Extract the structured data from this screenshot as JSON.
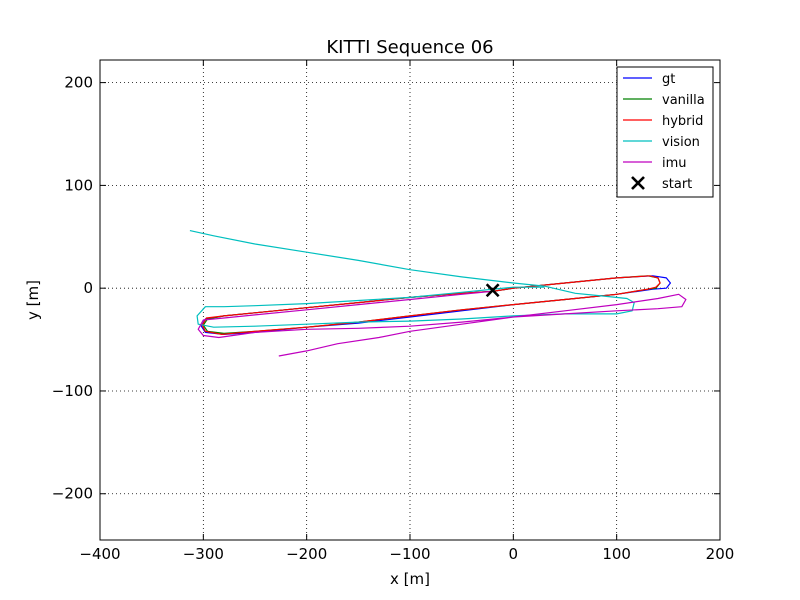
{
  "chart_data": {
    "type": "line",
    "title": "KITTI Sequence 06",
    "xlabel": "x [m]",
    "ylabel": "y [m]",
    "xlim": [
      -400,
      200
    ],
    "ylim": [
      -245,
      222
    ],
    "xticks": [
      -400,
      -300,
      -200,
      -100,
      0,
      100,
      200
    ],
    "yticks": [
      -200,
      -100,
      0,
      100,
      200
    ],
    "xtick_labels": [
      "−400",
      "−300",
      "−200",
      "−100",
      "0",
      "100",
      "200"
    ],
    "ytick_labels": [
      "−200",
      "−100",
      "0",
      "100",
      "200"
    ],
    "grid": true,
    "legend_position": "top-right",
    "series": [
      {
        "name": "gt",
        "color": "#0000ff",
        "points": [
          [
            -20,
            -3
          ],
          [
            0,
            0
          ],
          [
            50,
            5
          ],
          [
            100,
            10
          ],
          [
            135,
            12
          ],
          [
            148,
            10
          ],
          [
            152,
            5
          ],
          [
            148,
            0
          ],
          [
            135,
            -1
          ],
          [
            100,
            -6
          ],
          [
            50,
            -11
          ],
          [
            0,
            -16
          ],
          [
            -50,
            -22
          ],
          [
            -100,
            -28
          ],
          [
            -150,
            -34
          ],
          [
            -200,
            -38
          ],
          [
            -250,
            -43
          ],
          [
            -280,
            -45
          ],
          [
            -298,
            -43
          ],
          [
            -302,
            -37
          ],
          [
            -298,
            -30
          ],
          [
            -280,
            -27
          ],
          [
            -250,
            -24
          ],
          [
            -200,
            -19
          ],
          [
            -150,
            -14
          ],
          [
            -100,
            -9
          ],
          [
            -50,
            -5
          ],
          [
            -20,
            -3
          ]
        ]
      },
      {
        "name": "vanilla",
        "color": "#008000",
        "points": [
          [
            -20,
            -3
          ],
          [
            0,
            0
          ],
          [
            50,
            5
          ],
          [
            100,
            10
          ],
          [
            130,
            12
          ],
          [
            140,
            10
          ],
          [
            142,
            5
          ],
          [
            138,
            0
          ],
          [
            130,
            -1
          ],
          [
            100,
            -6
          ],
          [
            50,
            -11
          ],
          [
            0,
            -16
          ],
          [
            -50,
            -21
          ],
          [
            -100,
            -27
          ],
          [
            -150,
            -33
          ],
          [
            -200,
            -38
          ],
          [
            -250,
            -42
          ],
          [
            -280,
            -44
          ],
          [
            -296,
            -42
          ],
          [
            -300,
            -36
          ],
          [
            -296,
            -30
          ],
          [
            -280,
            -27
          ],
          [
            -250,
            -24
          ],
          [
            -200,
            -19
          ],
          [
            -150,
            -14
          ],
          [
            -100,
            -9
          ],
          [
            -50,
            -5
          ],
          [
            -20,
            -3
          ]
        ]
      },
      {
        "name": "hybrid",
        "color": "#ff0000",
        "points": [
          [
            -20,
            -3
          ],
          [
            0,
            0
          ],
          [
            50,
            5
          ],
          [
            100,
            10
          ],
          [
            132,
            12
          ],
          [
            140,
            10
          ],
          [
            142,
            5
          ],
          [
            138,
            1
          ],
          [
            130,
            -1
          ],
          [
            100,
            -6
          ],
          [
            50,
            -11
          ],
          [
            0,
            -16
          ],
          [
            -50,
            -21
          ],
          [
            -100,
            -27
          ],
          [
            -150,
            -33
          ],
          [
            -200,
            -38
          ],
          [
            -250,
            -42
          ],
          [
            -282,
            -45
          ],
          [
            -298,
            -42
          ],
          [
            -301,
            -36
          ],
          [
            -297,
            -29
          ],
          [
            -280,
            -27
          ],
          [
            -250,
            -24
          ],
          [
            -200,
            -19
          ],
          [
            -150,
            -14
          ],
          [
            -100,
            -9
          ],
          [
            -50,
            -5
          ],
          [
            -20,
            -3
          ]
        ]
      },
      {
        "name": "vision",
        "color": "#00bfbf",
        "points": [
          [
            -313,
            56
          ],
          [
            -290,
            51
          ],
          [
            -250,
            43
          ],
          [
            -200,
            35
          ],
          [
            -150,
            27
          ],
          [
            -100,
            18
          ],
          [
            -50,
            11
          ],
          [
            0,
            5
          ],
          [
            30,
            2
          ],
          [
            60,
            -5
          ],
          [
            90,
            -8
          ],
          [
            110,
            -10
          ],
          [
            117,
            -14
          ],
          [
            115,
            -22
          ],
          [
            100,
            -25
          ],
          [
            50,
            -25
          ],
          [
            0,
            -27
          ],
          [
            -50,
            -30
          ],
          [
            -100,
            -32
          ],
          [
            -150,
            -33
          ],
          [
            -200,
            -35
          ],
          [
            -250,
            -37
          ],
          [
            -290,
            -38
          ],
          [
            -305,
            -35
          ],
          [
            -306,
            -27
          ],
          [
            -298,
            -18
          ],
          [
            -280,
            -18
          ],
          [
            -250,
            -17
          ],
          [
            -200,
            -15
          ],
          [
            -150,
            -12
          ],
          [
            -100,
            -9
          ],
          [
            -50,
            -4
          ],
          [
            0,
            1
          ],
          [
            30,
            1
          ]
        ]
      },
      {
        "name": "imu",
        "color": "#bf00bf",
        "points": [
          [
            -227,
            -66
          ],
          [
            -200,
            -61
          ],
          [
            -170,
            -54
          ],
          [
            -130,
            -48
          ],
          [
            -100,
            -42
          ],
          [
            -50,
            -35
          ],
          [
            0,
            -28
          ],
          [
            50,
            -22
          ],
          [
            100,
            -16
          ],
          [
            140,
            -10
          ],
          [
            160,
            -6
          ],
          [
            167,
            -11
          ],
          [
            163,
            -18
          ],
          [
            140,
            -20
          ],
          [
            100,
            -22
          ],
          [
            50,
            -25
          ],
          [
            0,
            -28
          ],
          [
            -50,
            -33
          ],
          [
            -100,
            -37
          ],
          [
            -150,
            -39
          ],
          [
            -200,
            -40
          ],
          [
            -250,
            -43
          ],
          [
            -285,
            -48
          ],
          [
            -300,
            -46
          ],
          [
            -305,
            -40
          ],
          [
            -300,
            -31
          ],
          [
            -280,
            -29
          ],
          [
            -250,
            -26
          ],
          [
            -200,
            -21
          ],
          [
            -150,
            -16
          ],
          [
            -100,
            -11
          ],
          [
            -50,
            -6
          ],
          [
            -20,
            -3
          ]
        ]
      }
    ],
    "markers": [
      {
        "name": "start",
        "symbol": "x",
        "color": "#000000",
        "x": -20,
        "y": -2
      }
    ]
  }
}
